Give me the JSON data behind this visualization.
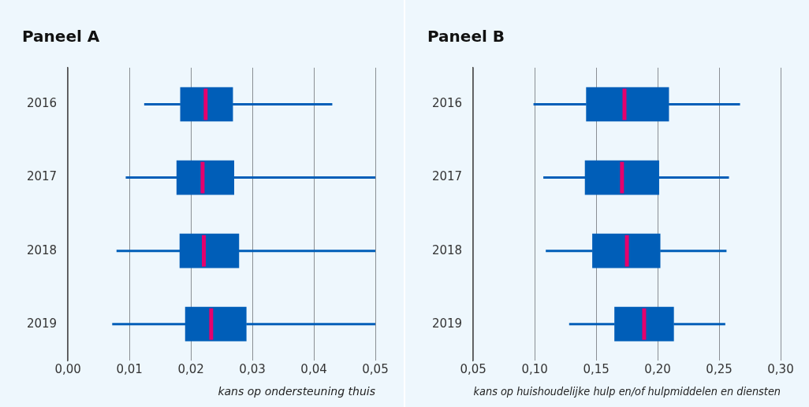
{
  "chart_data": [
    {
      "type": "box",
      "title": "Paneel A",
      "xlabel": "kans op ondersteuning thuis",
      "orientation": "horizontal",
      "grid": "x",
      "categories": [
        "2016",
        "2017",
        "2018",
        "2019"
      ],
      "xlim": [
        0,
        0.05
      ],
      "xticks": [
        {
          "value": 0,
          "label": "0,00"
        },
        {
          "value": 0.01,
          "label": "0,01"
        },
        {
          "value": 0.02,
          "label": "0,02"
        },
        {
          "value": 0.03,
          "label": "0,03"
        },
        {
          "value": 0.04,
          "label": "0,04"
        },
        {
          "value": 0.05,
          "label": "0,05"
        }
      ],
      "series": [
        {
          "color": "#005eb8",
          "boxes": [
            {
              "low": 0.0124,
              "q1": 0.0183,
              "median": 0.0224,
              "q3": 0.0268,
              "high": 0.043
            },
            {
              "low": 0.0094,
              "q1": 0.0177,
              "median": 0.0219,
              "q3": 0.027,
              "high": 0.05
            },
            {
              "low": 0.0079,
              "q1": 0.0182,
              "median": 0.0221,
              "q3": 0.0278,
              "high": 0.05
            },
            {
              "low": 0.0072,
              "q1": 0.0191,
              "median": 0.0233,
              "q3": 0.029,
              "high": 0.05
            }
          ]
        }
      ]
    },
    {
      "type": "box",
      "title": "Paneel B",
      "xlabel": "kans op huishoudelijke hulp en/of hulpmiddelen en diensten",
      "orientation": "horizontal",
      "grid": "x",
      "categories": [
        "2016",
        "2017",
        "2018",
        "2019"
      ],
      "xlim": [
        0.05,
        0.3
      ],
      "xticks": [
        {
          "value": 0.05,
          "label": "0,05"
        },
        {
          "value": 0.1,
          "label": "0,10"
        },
        {
          "value": 0.15,
          "label": "0,15"
        },
        {
          "value": 0.2,
          "label": "0,20"
        },
        {
          "value": 0.25,
          "label": "0,25"
        },
        {
          "value": 0.3,
          "label": "0,30"
        }
      ],
      "series": [
        {
          "color": "#005eb8",
          "boxes": [
            {
              "low": 0.099,
              "q1": 0.142,
              "median": 0.173,
              "q3": 0.209,
              "high": 0.267
            },
            {
              "low": 0.107,
              "q1": 0.141,
              "median": 0.171,
              "q3": 0.201,
              "high": 0.258
            },
            {
              "low": 0.109,
              "q1": 0.147,
              "median": 0.175,
              "q3": 0.202,
              "high": 0.256
            },
            {
              "low": 0.128,
              "q1": 0.165,
              "median": 0.189,
              "q3": 0.213,
              "high": 0.255
            }
          ]
        }
      ]
    }
  ]
}
